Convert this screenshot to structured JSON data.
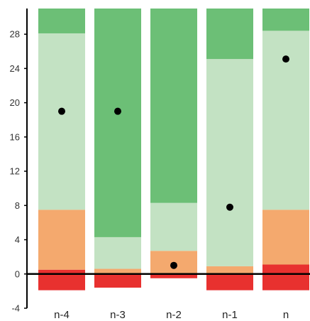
{
  "chart_data": {
    "type": "bar",
    "stacked": true,
    "title": "",
    "xlabel": "",
    "ylabel": "",
    "categories": [
      "n-4",
      "n-3",
      "n-2",
      "n-1",
      "n"
    ],
    "ylim": [
      -4,
      31
    ],
    "yticks": [
      -4,
      0,
      4,
      8,
      12,
      16,
      20,
      24,
      28
    ],
    "grid": false,
    "legend": "none",
    "segments": [
      {
        "color": "#e8312f",
        "ranges": [
          [
            -1.9,
            0.5
          ],
          [
            -1.6,
            0
          ],
          [
            -0.5,
            0
          ],
          [
            -1.9,
            0
          ],
          [
            -1.9,
            1.1
          ]
        ]
      },
      {
        "color": "#f4a96e",
        "ranges": [
          [
            0.5,
            7.5
          ],
          [
            0,
            0.6
          ],
          [
            0,
            2.7
          ],
          [
            0,
            0.9
          ],
          [
            1.1,
            7.5
          ]
        ]
      },
      {
        "color": "#c3e2c3",
        "ranges": [
          [
            7.5,
            28.1
          ],
          [
            0.6,
            4.3
          ],
          [
            2.7,
            8.3
          ],
          [
            0.9,
            25.1
          ],
          [
            7.5,
            28.4
          ]
        ]
      },
      {
        "color": "#6cbf76",
        "ranges": [
          [
            28.1,
            31
          ],
          [
            4.3,
            31
          ],
          [
            8.3,
            31
          ],
          [
            25.1,
            31
          ],
          [
            28.4,
            31
          ]
        ]
      }
    ],
    "markers": [
      19,
      19,
      1,
      7.8,
      25.1
    ],
    "marker_color": "#000000"
  }
}
